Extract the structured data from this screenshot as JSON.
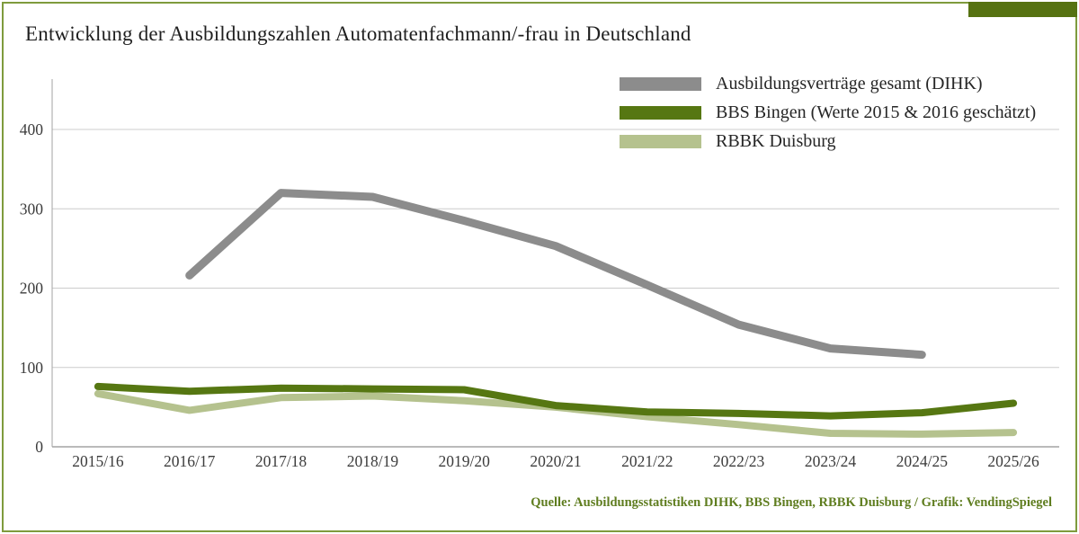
{
  "chart_data": {
    "type": "line",
    "title": "Entwicklung der Ausbildungszahlen Automatenfachmann/-frau in Deutschland",
    "categories": [
      "2015/16",
      "2016/17",
      "2017/18",
      "2018/19",
      "2019/20",
      "2020/21",
      "2021/22",
      "2022/23",
      "2023/24",
      "2024/25",
      "2025/26"
    ],
    "series": [
      {
        "name": "Ausbildungsverträge  gesamt (DIHK)",
        "color": "#8c8c8c",
        "values": [
          null,
          216,
          320,
          315,
          285,
          253,
          204,
          154,
          124,
          116,
          null
        ]
      },
      {
        "name": "BBS Bingen (Werte 2015 & 2016 geschätzt)",
        "color": "#567712",
        "values": [
          76,
          70,
          74,
          73,
          72,
          52,
          44,
          42,
          39,
          43,
          55
        ]
      },
      {
        "name": "RBBK Duisburg",
        "color": "#b5c28e",
        "values": [
          67,
          46,
          62,
          64,
          58,
          50,
          38,
          28,
          17,
          16,
          18
        ]
      }
    ],
    "xlabel": "",
    "ylabel": "",
    "yticks": [
      0,
      100,
      200,
      300,
      400
    ],
    "ylim": [
      0,
      460
    ],
    "grid": true,
    "legend_position": "top-right",
    "source": "Quelle: Ausbildungsstatistiken DIHK, BBS Bingen, RBBK Duisburg / Grafik: VendingSpiegel"
  },
  "colors": {
    "frame_border": "#7f9b3d",
    "accent_bar": "#567212",
    "gridline": "#cccccc",
    "axis_line": "#a3a3a3",
    "axis_text": "#3c3c3c",
    "title_text": "#1f1f1f",
    "legend_text": "#262626",
    "source_text": "#5f7d1f"
  }
}
